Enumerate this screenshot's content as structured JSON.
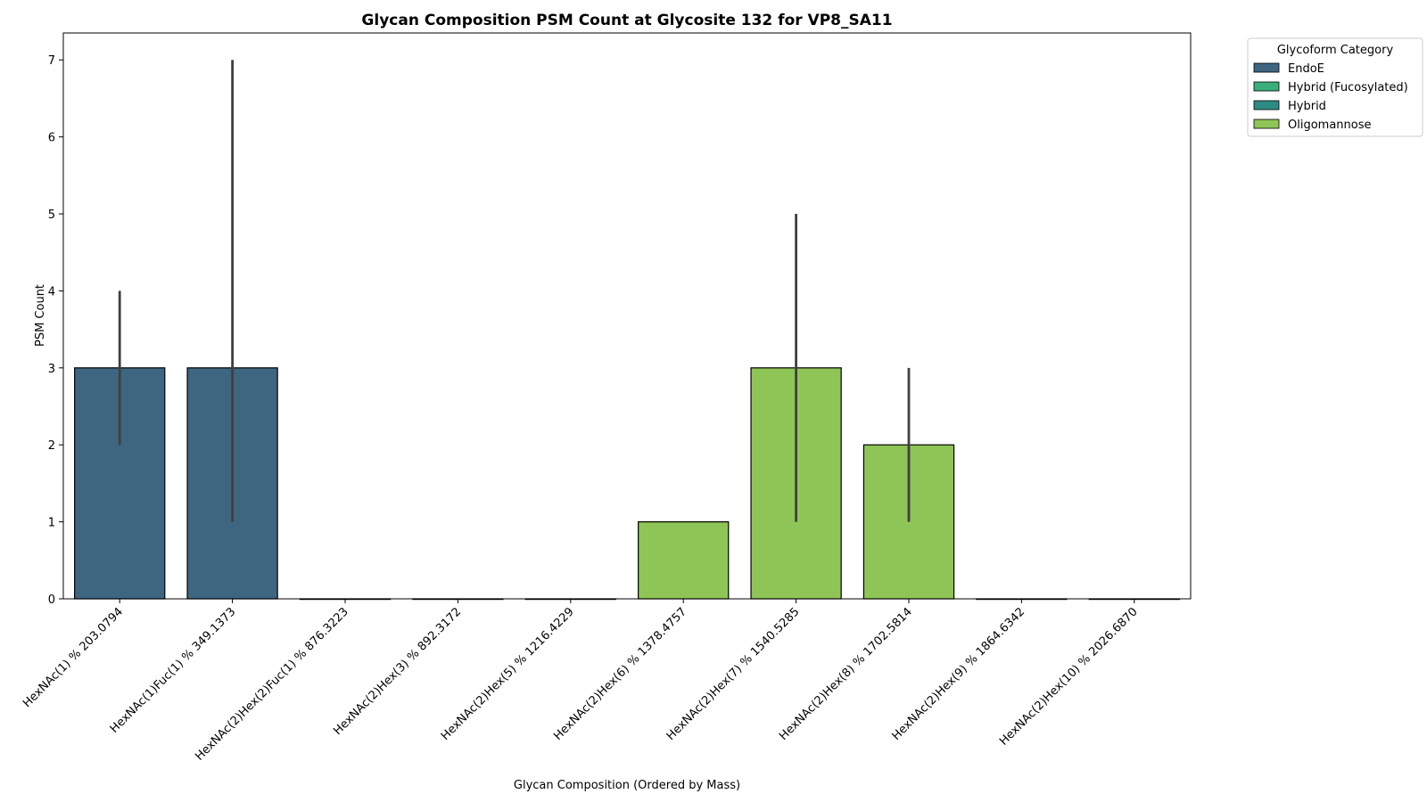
{
  "chart_data": {
    "type": "bar",
    "title": "Glycan Composition PSM Count at Glycosite 132 for VP8_SA11",
    "xlabel": "Glycan Composition (Ordered by Mass)",
    "ylabel": "PSM Count",
    "ylim": [
      0,
      7.35
    ],
    "yticks": [
      0,
      1,
      2,
      3,
      4,
      5,
      6,
      7
    ],
    "grid": false,
    "categories": [
      "HexNAc(1) % 203.0794",
      "HexNAc(1)Fuc(1) % 349.1373",
      "HexNAc(2)Hex(2)Fuc(1) % 876.3223",
      "HexNAc(2)Hex(3) % 892.3172",
      "HexNAc(2)Hex(5) % 1216.4229",
      "HexNAc(2)Hex(6) % 1378.4757",
      "HexNAc(2)Hex(7) % 1540.5285",
      "HexNAc(2)Hex(8) % 1702.5814",
      "HexNAc(2)Hex(9) % 1864.6342",
      "HexNAc(2)Hex(10) % 2026.6870"
    ],
    "values": [
      3,
      3,
      0,
      0,
      0,
      1,
      3,
      2,
      0,
      0
    ],
    "categories_group": [
      "EndoE",
      "EndoE",
      "Hybrid (Fucosylated)",
      "Hybrid",
      "Oligomannose",
      "Oligomannose",
      "Oligomannose",
      "Oligomannose",
      "Oligomannose",
      "Oligomannose"
    ],
    "error_bars": [
      [
        2,
        4
      ],
      [
        1,
        7
      ],
      null,
      null,
      null,
      null,
      [
        1,
        5
      ],
      [
        1,
        3
      ],
      null,
      null
    ],
    "legend": {
      "title": "Glycoform Category",
      "placement": "outside-top-right",
      "entries": [
        {
          "name": "EndoE",
          "color": "#3e6681"
        },
        {
          "name": "Hybrid (Fucosylated)",
          "color": "#3aaf7b"
        },
        {
          "name": "Hybrid",
          "color": "#2e8a84"
        },
        {
          "name": "Oligomannose",
          "color": "#8fc556"
        }
      ]
    },
    "error_color": "#404040"
  }
}
